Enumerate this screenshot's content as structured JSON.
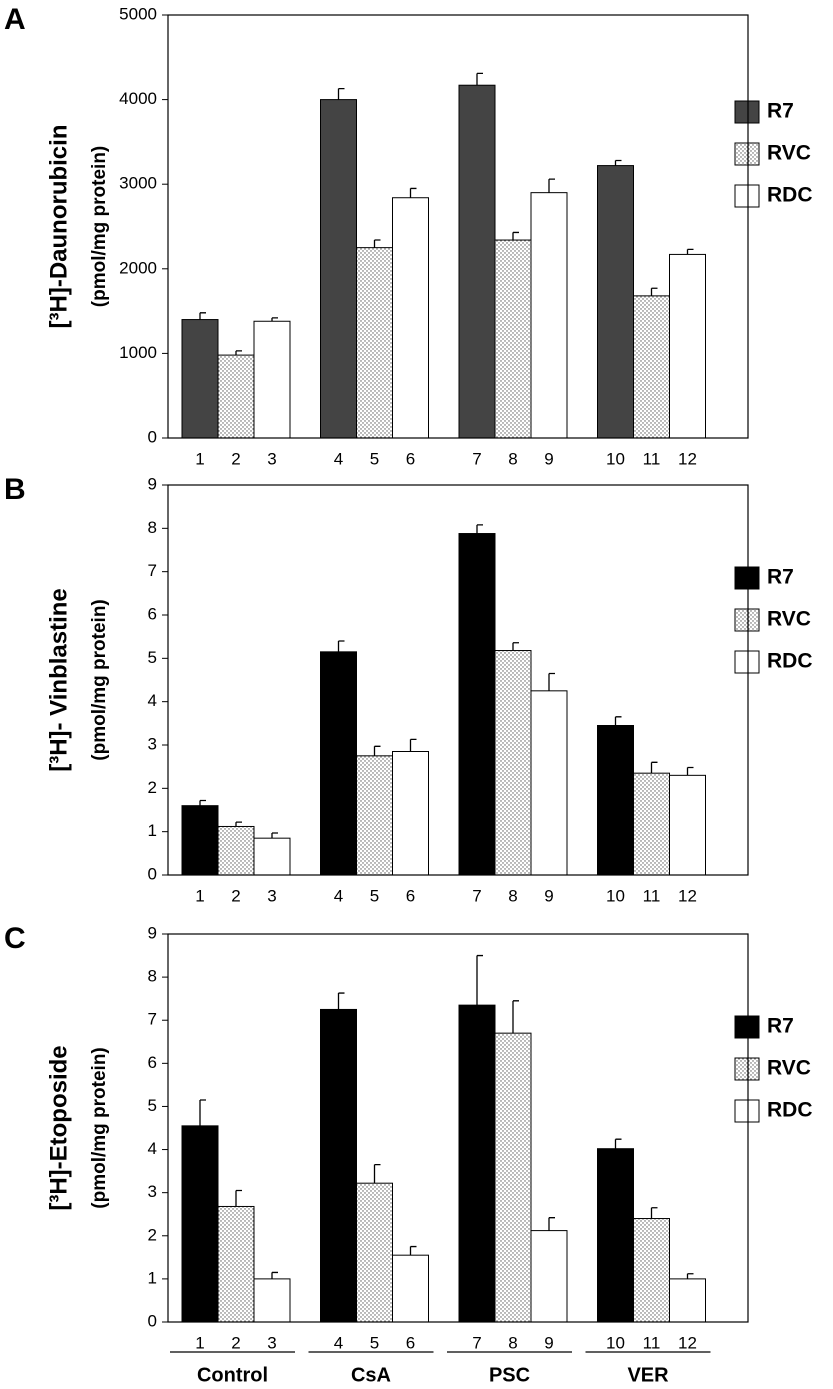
{
  "chart_data": [
    {
      "type": "bar",
      "panel": "A",
      "ylabel": "[³H]-Daunorubicin",
      "ylabel_unit": "(pmol/mg protein)",
      "bar_labels": [
        [
          "1",
          "2",
          "3"
        ],
        [
          "4",
          "5",
          "6"
        ],
        [
          "7",
          "8",
          "9"
        ],
        [
          "10",
          "11",
          "12"
        ]
      ],
      "ylim": [
        0,
        5000
      ],
      "yticks": [
        0,
        1000,
        2000,
        3000,
        4000,
        5000
      ],
      "series": [
        {
          "name": "R7",
          "color": "#444444",
          "values": [
            1400,
            4000,
            4170,
            3220
          ],
          "errors": [
            80,
            130,
            140,
            60
          ]
        },
        {
          "name": "RVC",
          "color": "#ffffff",
          "pattern": "dots",
          "values": [
            980,
            2250,
            2340,
            1680
          ],
          "errors": [
            50,
            90,
            90,
            90
          ]
        },
        {
          "name": "RDC",
          "color": "#ffffff",
          "values": [
            1380,
            2840,
            2900,
            2170
          ],
          "errors": [
            40,
            110,
            160,
            60
          ]
        }
      ]
    },
    {
      "type": "bar",
      "panel": "B",
      "ylabel": "[³H]- Vinblastine",
      "ylabel_unit": "(pmol/mg protein)",
      "bar_labels": [
        [
          "1",
          "2",
          "3"
        ],
        [
          "4",
          "5",
          "6"
        ],
        [
          "7",
          "8",
          "9"
        ],
        [
          "10",
          "11",
          "12"
        ]
      ],
      "ylim": [
        0,
        9
      ],
      "yticks": [
        0,
        1,
        2,
        3,
        4,
        5,
        6,
        7,
        8,
        9
      ],
      "series": [
        {
          "name": "R7",
          "color": "#000000",
          "values": [
            1.6,
            5.15,
            7.88,
            3.45
          ],
          "errors": [
            0.12,
            0.25,
            0.2,
            0.2
          ]
        },
        {
          "name": "RVC",
          "color": "#ffffff",
          "pattern": "dots",
          "values": [
            1.12,
            2.75,
            5.18,
            2.35
          ],
          "errors": [
            0.1,
            0.22,
            0.18,
            0.25
          ]
        },
        {
          "name": "RDC",
          "color": "#ffffff",
          "values": [
            0.85,
            2.85,
            4.25,
            2.3
          ],
          "errors": [
            0.12,
            0.28,
            0.4,
            0.18
          ]
        }
      ]
    },
    {
      "type": "bar",
      "panel": "C",
      "ylabel": "[³H]-Etoposide",
      "ylabel_unit": "(pmol/mg protein)",
      "categories": [
        "Control",
        "CsA",
        "PSC",
        "VER"
      ],
      "bar_labels": [
        [
          "1",
          "2",
          "3"
        ],
        [
          "4",
          "5",
          "6"
        ],
        [
          "7",
          "8",
          "9"
        ],
        [
          "10",
          "11",
          "12"
        ]
      ],
      "ylim": [
        0,
        9
      ],
      "yticks": [
        0,
        1,
        2,
        3,
        4,
        5,
        6,
        7,
        8,
        9
      ],
      "series": [
        {
          "name": "R7",
          "color": "#000000",
          "values": [
            4.55,
            7.25,
            7.35,
            4.02
          ],
          "errors": [
            0.6,
            0.38,
            1.15,
            0.22
          ]
        },
        {
          "name": "RVC",
          "color": "#ffffff",
          "pattern": "dots",
          "values": [
            2.68,
            3.22,
            6.7,
            2.4
          ],
          "errors": [
            0.37,
            0.43,
            0.75,
            0.25
          ]
        },
        {
          "name": "RDC",
          "color": "#ffffff",
          "values": [
            1.0,
            1.55,
            2.12,
            1.0
          ],
          "errors": [
            0.15,
            0.2,
            0.3,
            0.12
          ]
        }
      ]
    }
  ]
}
